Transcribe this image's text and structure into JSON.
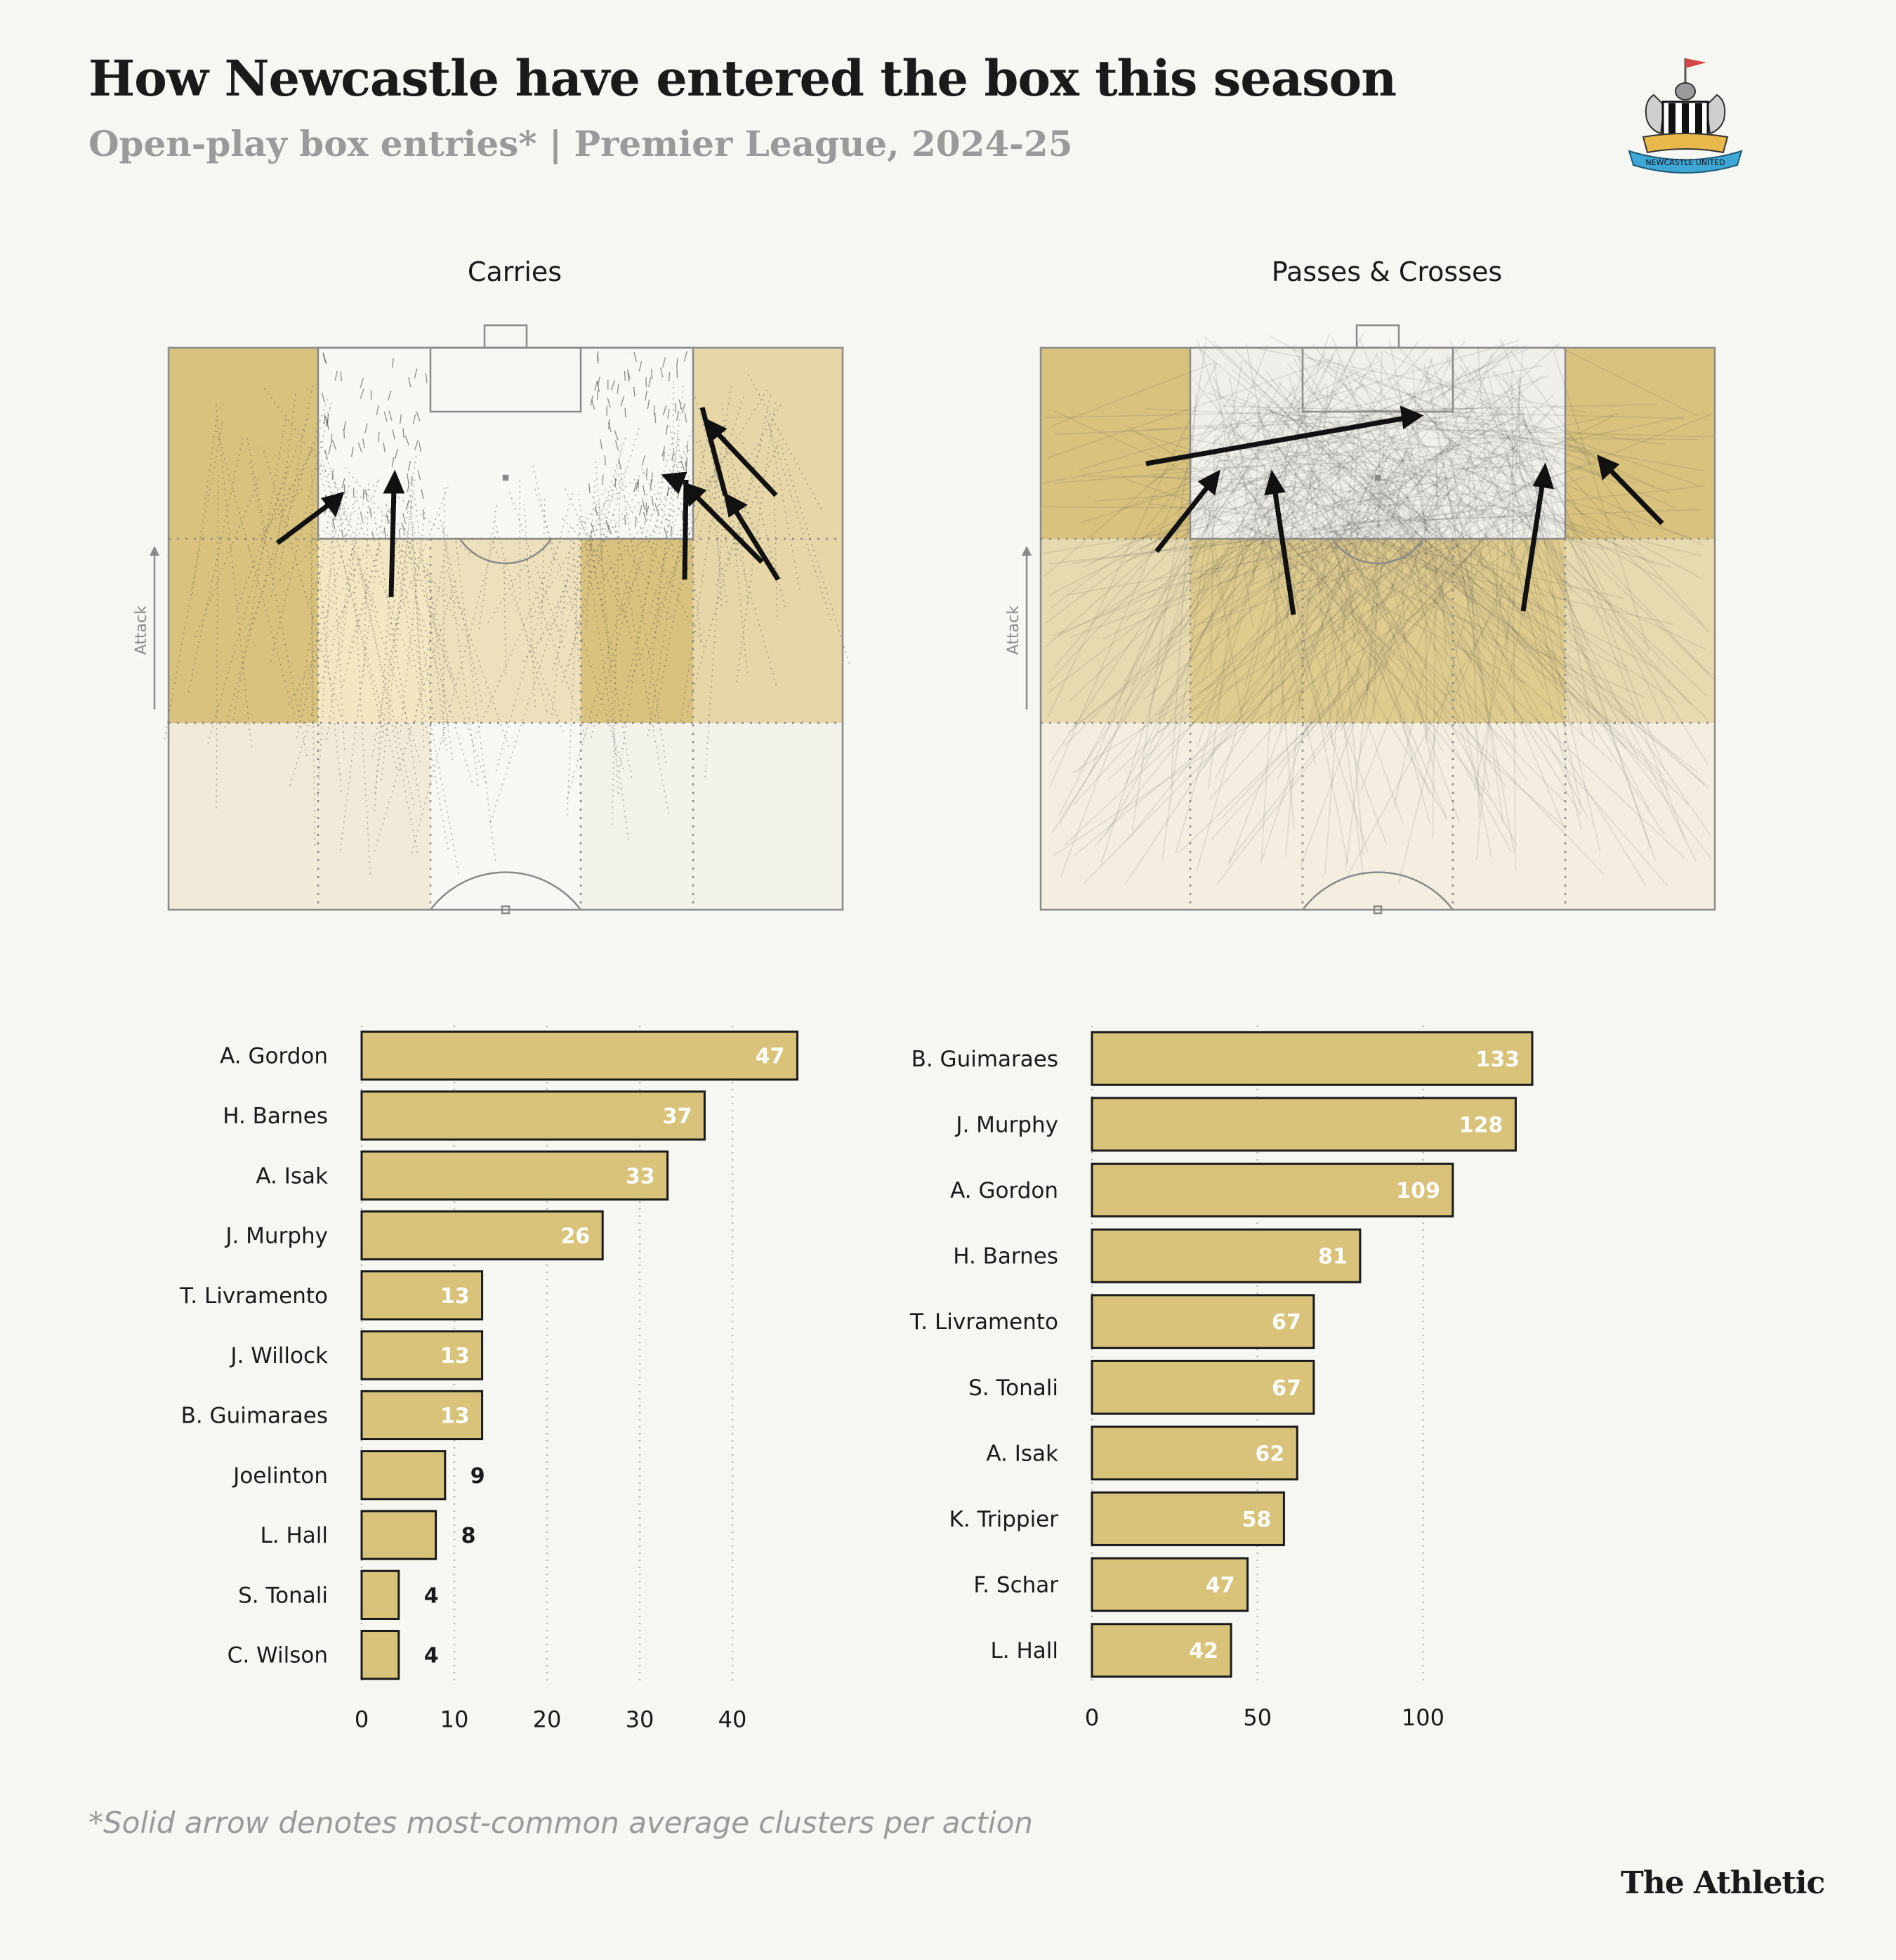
{
  "header": {
    "title": "How Newcastle have entered the box this season",
    "subtitle": "Open-play box entries* | Premier League, 2024-25",
    "crest_icon": "newcastle-united-crest-icon",
    "crest_text": "NEWCASTLE UNITED"
  },
  "pitch_panels": [
    {
      "title": "Carries",
      "attack_label": "Attack"
    },
    {
      "title": "Passes & Crosses",
      "attack_label": "Attack"
    }
  ],
  "colors": {
    "bar_fill": "#d9c27a",
    "bar_stroke": "#1a1a1a",
    "zone_dark": "#d8c27e",
    "zone_mid": "#e8dab0",
    "zone_light": "#f2ecdc",
    "background": "#f6f6f2"
  },
  "chart_data": [
    {
      "type": "bar",
      "orientation": "horizontal",
      "title": "Carries",
      "categories": [
        "A. Gordon",
        "H. Barnes",
        "A. Isak",
        "J. Murphy",
        "T. Livramento",
        "J. Willock",
        "B. Guimaraes",
        "Joelinton",
        "L. Hall",
        "S. Tonali",
        "C. Wilson"
      ],
      "values": [
        47,
        37,
        33,
        26,
        13,
        13,
        13,
        9,
        8,
        4,
        4
      ],
      "xlim": [
        0,
        50
      ],
      "xticks": [
        0,
        10,
        20,
        30,
        40
      ],
      "grid": true
    },
    {
      "type": "bar",
      "orientation": "horizontal",
      "title": "Passes & Crosses",
      "categories": [
        "B. Guimaraes",
        "J. Murphy",
        "A. Gordon",
        "H. Barnes",
        "T. Livramento",
        "S. Tonali",
        "A. Isak",
        "K. Trippier",
        "F. Schar",
        "L. Hall"
      ],
      "values": [
        133,
        128,
        109,
        81,
        67,
        67,
        62,
        58,
        47,
        42
      ],
      "xlim": [
        0,
        140
      ],
      "xticks": [
        0,
        50,
        100
      ],
      "grid": true
    }
  ],
  "footer": {
    "note": "*Solid arrow denotes most-common average clusters per action",
    "brand": "The Athletic"
  }
}
